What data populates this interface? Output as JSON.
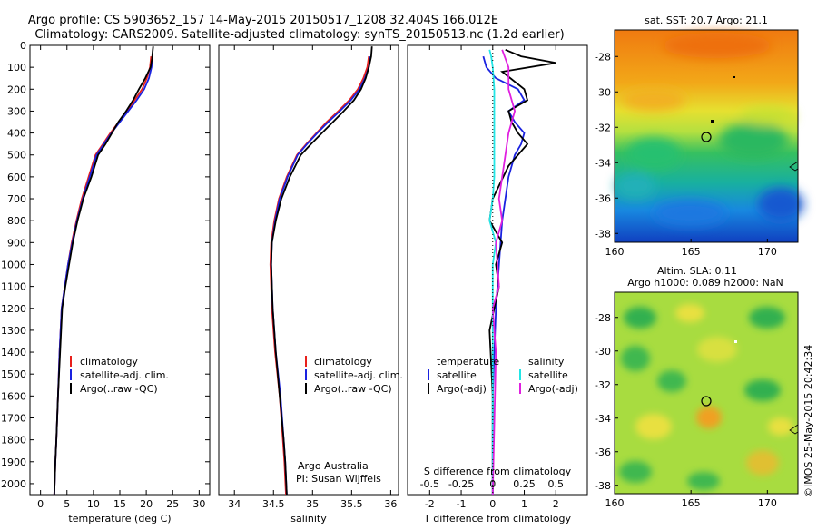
{
  "header": {
    "line1": "Argo profile: CS 5903652_157 14-May-2015 20150517_1208 32.404S 166.012E",
    "line2": "Climatology: CARS2009. Satellite-adjusted climatology: synTS_20150513.nc (1.2d earlier)"
  },
  "colors": {
    "climatology": "#e8201c",
    "satellite": "#1a22e0",
    "argo": "#000000",
    "salinity_satellite": "#22e6e6",
    "salinity_argo": "#e020e0"
  },
  "legend_profiles": [
    "climatology",
    "satellite-adj. clim.",
    "Argo(..raw -QC)"
  ],
  "diff_legend": {
    "temperature_title": "temperature",
    "salinity_title": "salinity",
    "satellite": "satellite",
    "argo": "Argo(-adj)"
  },
  "credits": {
    "org": "Argo Australia",
    "pi": "PI: Susan Wijffels"
  },
  "stamp": "©IMOS 25-May-2015 20:42:34",
  "maps": {
    "sst_title": "sat. SST: 20.7 Argo: 21.1",
    "sla_title1": "Altim. SLA: 0.11",
    "sla_title2": "Argo h1000: 0.089 h2000: NaN",
    "lat_ticks": [
      "-28",
      "-30",
      "-32",
      "-34",
      "-36",
      "-38"
    ],
    "lon_ticks": [
      "160",
      "165",
      "170"
    ]
  },
  "chart_data": [
    {
      "type": "line",
      "xlabel": "temperature (deg C)",
      "ylabel": "",
      "xlim": [
        -2,
        32
      ],
      "ylim": [
        2050,
        0
      ],
      "xticks": [
        0,
        5,
        10,
        15,
        20,
        25,
        30
      ],
      "yticks": [
        0,
        100,
        200,
        300,
        400,
        500,
        600,
        700,
        800,
        900,
        1000,
        1100,
        1200,
        1300,
        1400,
        1500,
        1600,
        1700,
        1800,
        1900,
        2000
      ],
      "series": [
        {
          "name": "climatology",
          "x": [
            20.9,
            20.7,
            20.1,
            19.2,
            17.8,
            16.3,
            14.8,
            13.2,
            11.8,
            10.4,
            9.1,
            7.8,
            6.8,
            5.9,
            5.2,
            4.6,
            4.0,
            3.6,
            3.3,
            3.0,
            2.8,
            2.6
          ],
          "y": [
            50,
            100,
            150,
            200,
            250,
            300,
            350,
            400,
            450,
            500,
            600,
            700,
            800,
            900,
            1000,
            1100,
            1200,
            1400,
            1600,
            1800,
            1900,
            2050
          ]
        },
        {
          "name": "satellite-adj. clim.",
          "x": [
            21.2,
            21.0,
            20.5,
            19.6,
            18.2,
            16.6,
            15.0,
            13.4,
            12.0,
            10.6,
            9.3,
            8.0,
            6.9,
            6.0,
            5.2,
            4.6,
            4.0,
            3.6,
            3.3,
            3.0,
            2.8,
            2.6
          ],
          "y": [
            50,
            100,
            150,
            200,
            250,
            300,
            350,
            400,
            450,
            500,
            600,
            700,
            800,
            900,
            1000,
            1100,
            1200,
            1400,
            1600,
            1800,
            1900,
            2050
          ]
        },
        {
          "name": "Argo(..raw -QC)",
          "x": [
            21.3,
            21.2,
            21.1,
            20.8,
            19.8,
            18.6,
            17.5,
            16.2,
            14.7,
            13.5,
            12.3,
            10.9,
            9.6,
            8.1,
            7.0,
            6.1,
            5.4,
            4.7,
            4.1,
            3.7,
            3.3,
            3.0,
            2.8,
            2.6
          ],
          "y": [
            5,
            30,
            60,
            100,
            150,
            200,
            250,
            300,
            350,
            400,
            450,
            500,
            600,
            700,
            800,
            900,
            1000,
            1100,
            1200,
            1400,
            1600,
            1800,
            1900,
            2050
          ]
        }
      ]
    },
    {
      "type": "line",
      "xlabel": "salinity",
      "ylabel": "",
      "xlim": [
        33.8,
        36.1
      ],
      "ylim": [
        2050,
        0
      ],
      "xticks": [
        34,
        34.5,
        35,
        35.5,
        36
      ],
      "series": [
        {
          "name": "climatology",
          "x": [
            35.72,
            35.7,
            35.65,
            35.58,
            35.47,
            35.33,
            35.18,
            35.05,
            34.92,
            34.8,
            34.67,
            34.57,
            34.51,
            34.47,
            34.46,
            34.48,
            34.52,
            34.58,
            34.62,
            34.64,
            34.66
          ],
          "y": [
            50,
            100,
            150,
            200,
            250,
            300,
            350,
            400,
            450,
            500,
            600,
            700,
            800,
            900,
            1000,
            1200,
            1400,
            1600,
            1800,
            1900,
            2050
          ]
        },
        {
          "name": "satellite-adj. clim.",
          "x": [
            35.74,
            35.72,
            35.67,
            35.6,
            35.49,
            35.35,
            35.2,
            35.06,
            34.93,
            34.81,
            34.68,
            34.58,
            34.52,
            34.48,
            34.47,
            34.49,
            34.53,
            34.59,
            34.63,
            34.65,
            34.67
          ],
          "y": [
            50,
            100,
            150,
            200,
            250,
            300,
            350,
            400,
            450,
            500,
            600,
            700,
            800,
            900,
            1000,
            1200,
            1400,
            1600,
            1800,
            1900,
            2050
          ]
        },
        {
          "name": "Argo(..raw -QC)",
          "x": [
            35.76,
            35.75,
            35.72,
            35.68,
            35.62,
            35.53,
            35.4,
            35.26,
            35.12,
            34.98,
            34.85,
            34.71,
            34.6,
            34.53,
            34.48,
            34.47,
            34.49,
            34.53,
            34.58,
            34.63,
            34.65,
            34.67
          ],
          "y": [
            5,
            50,
            100,
            150,
            200,
            250,
            300,
            350,
            400,
            450,
            500,
            600,
            700,
            800,
            900,
            1000,
            1200,
            1400,
            1600,
            1800,
            1900,
            2050
          ]
        }
      ]
    },
    {
      "type": "line",
      "xlabel": "T difference from climatology",
      "xlabel_top": "S difference from climatology",
      "xlim": [
        -2.7,
        3.0
      ],
      "ylim": [
        2050,
        0
      ],
      "xticks": [
        -2,
        -1,
        0,
        1,
        2
      ],
      "xtick_labels_top": [
        "-0.5",
        "-0.25",
        "0",
        "0.25",
        "0.5"
      ],
      "series": [
        {
          "name": "temperature satellite",
          "x": [
            -0.3,
            -0.2,
            0.1,
            0.8,
            1.0,
            0.5,
            0.7,
            1.0,
            0.9,
            0.7,
            0.5,
            0.3,
            0.2,
            0.1,
            0.0,
            0.0
          ],
          "y": [
            50,
            100,
            150,
            200,
            250,
            300,
            350,
            400,
            450,
            500,
            600,
            800,
            1000,
            1200,
            1600,
            2050
          ]
        },
        {
          "name": "temperature Argo(-adj)",
          "x": [
            0.4,
            0.9,
            2.0,
            0.3,
            1.0,
            1.1,
            0.5,
            0.6,
            0.8,
            1.1,
            0.5,
            0.0,
            -0.1,
            0.3,
            0.1,
            0.2,
            -0.1,
            0.0,
            0.0
          ],
          "y": [
            20,
            50,
            80,
            120,
            200,
            250,
            300,
            350,
            400,
            450,
            550,
            700,
            800,
            900,
            1000,
            1100,
            1300,
            1600,
            2050
          ]
        },
        {
          "name": "salinity satellite",
          "x": [
            -0.1,
            -0.05,
            0.0,
            0.05,
            0.05,
            0.05,
            0.05,
            0.05,
            0.0,
            -0.1,
            0.1,
            0.0,
            0.0,
            0.0
          ],
          "y": [
            20,
            50,
            100,
            200,
            300,
            400,
            500,
            600,
            700,
            800,
            900,
            1000,
            1400,
            2050
          ]
        },
        {
          "name": "salinity Argo(-adj)",
          "x": [
            0.3,
            0.5,
            0.5,
            0.7,
            0.5,
            0.4,
            0.3,
            0.2,
            0.3,
            0.1,
            0.2,
            0.0,
            0.1,
            0.0
          ],
          "y": [
            20,
            100,
            200,
            300,
            400,
            500,
            600,
            700,
            800,
            900,
            1100,
            1200,
            1400,
            2050
          ]
        }
      ]
    },
    {
      "type": "heatmap",
      "title": "sat. SST: 20.7 Argo: 21.1",
      "xlim": [
        160,
        172
      ],
      "ylim": [
        -38.5,
        -26.5
      ],
      "float_position": {
        "lon": 166.012,
        "lat": -32.404
      }
    },
    {
      "type": "heatmap",
      "title": "Altim. SLA: 0.11",
      "subtitle": "Argo h1000: 0.089 h2000: NaN",
      "xlim": [
        160,
        172
      ],
      "ylim": [
        -38.5,
        -26.5
      ],
      "float_position": {
        "lon": 166.012,
        "lat": -32.404
      }
    }
  ]
}
